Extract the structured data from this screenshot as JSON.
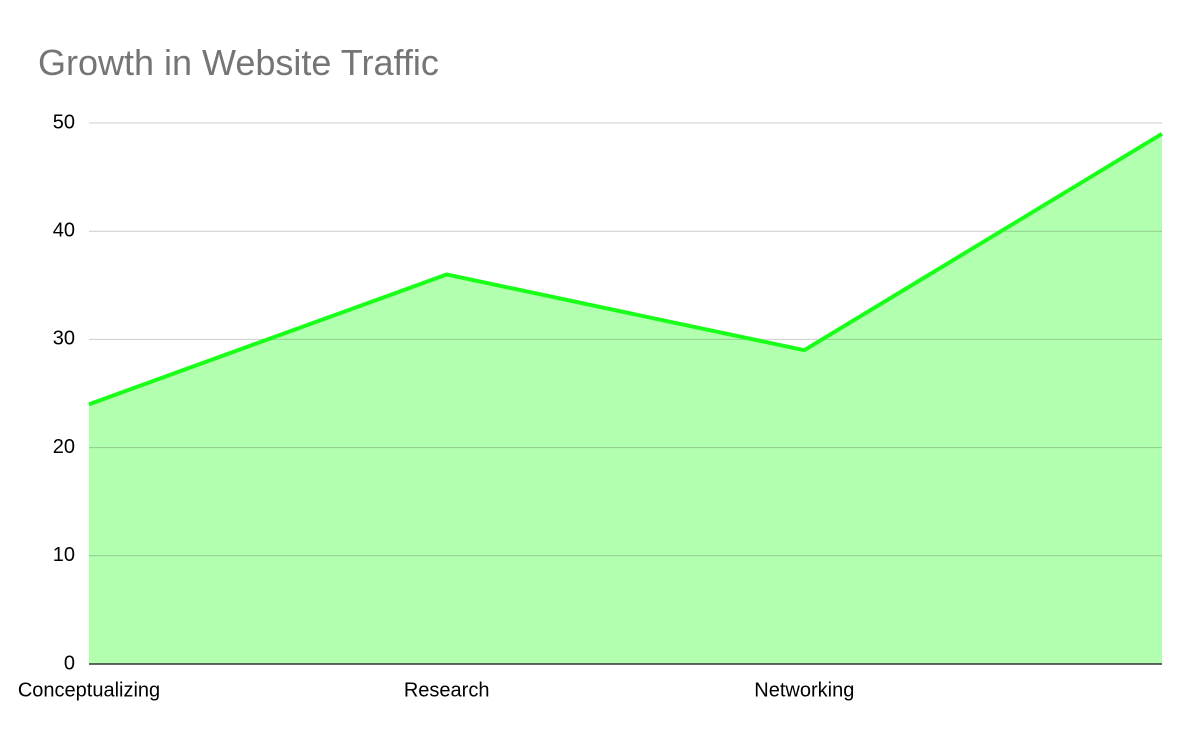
{
  "chart_data": {
    "type": "area",
    "title": "Growth in Website Traffic",
    "categories": [
      "Conceptualizing",
      "Research",
      "Networking",
      null
    ],
    "values": [
      24,
      36,
      29,
      49
    ],
    "color": "#1aff1a",
    "fill": "#b3ffb0",
    "ylim": [
      0,
      50
    ],
    "yticks": [
      0,
      10,
      20,
      30,
      40,
      50
    ],
    "grid": true
  }
}
